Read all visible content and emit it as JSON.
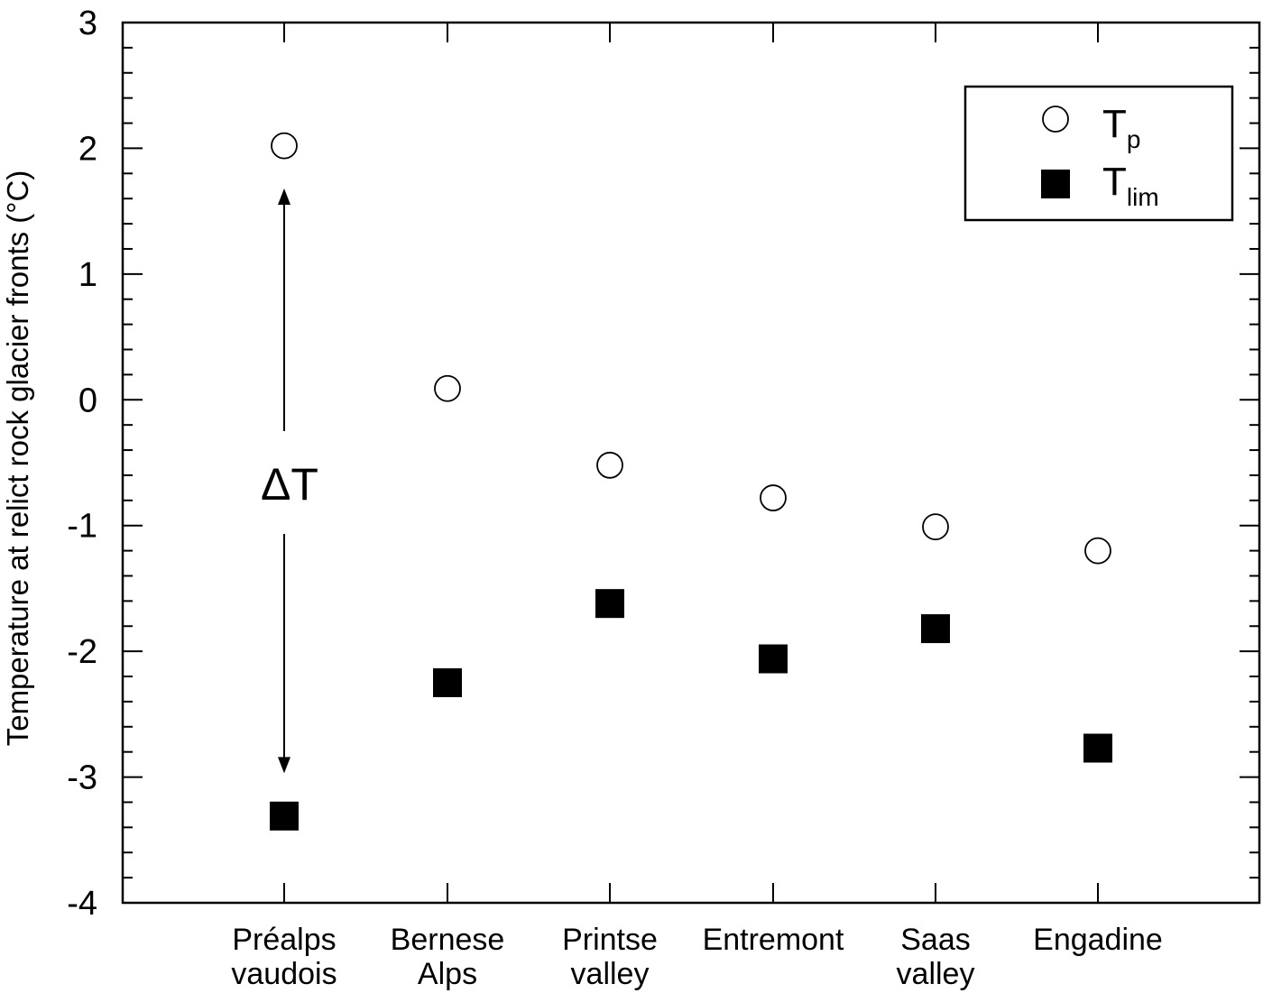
{
  "chart_data": {
    "type": "scatter",
    "ylabel": "Temperature at relict rock glacier fronts (°C)",
    "ylim": [
      -4,
      3
    ],
    "y_ticks": [
      "3",
      "2",
      "1",
      "0",
      "-1",
      "-2",
      "-3",
      "-4"
    ],
    "y_tick_values": [
      3,
      2,
      1,
      0,
      -1,
      -2,
      -3,
      -4
    ],
    "categories": [
      [
        "Préalps",
        "vaudois"
      ],
      [
        "Bernese",
        "Alps"
      ],
      [
        "Printse",
        "valley"
      ],
      [
        "Entremont"
      ],
      [
        "Saas",
        "valley"
      ],
      [
        "Engadine"
      ]
    ],
    "series": [
      {
        "name": "Tp",
        "name_main": "T",
        "name_sub": "p",
        "marker": "open-circle",
        "values": [
          2.02,
          0.09,
          -0.52,
          -0.78,
          -1.01,
          -1.2
        ]
      },
      {
        "name": "Tlim",
        "name_main": "T",
        "name_sub": "lim",
        "marker": "filled-square",
        "values": [
          -3.31,
          -2.25,
          -1.62,
          -2.06,
          -1.82,
          -2.77
        ]
      }
    ],
    "annotation": {
      "text": "ΔT",
      "from": 1.68,
      "to": -2.97
    },
    "legend_position": "top-right",
    "grid": false
  }
}
